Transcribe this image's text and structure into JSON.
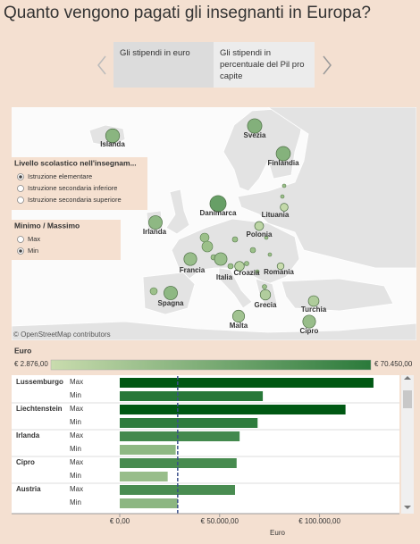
{
  "title": "Quanto vengono pagati gli insegnanti in Europa?",
  "tabs": {
    "items": [
      "Gli stipendi in euro",
      "Gli stipendi in percentuale del Pil pro capite"
    ],
    "selected": 0
  },
  "map": {
    "attribution": "© OpenStreetMap contributors",
    "points": [
      {
        "label": "Islanda",
        "value": 30000
      },
      {
        "label": "Svezia",
        "value": 33000
      },
      {
        "label": "Finlandia",
        "value": 32000
      },
      {
        "label": "Danimarca",
        "value": 45000
      },
      {
        "label": "Lituania",
        "value": 5000
      },
      {
        "label": "Polonia",
        "value": 8000
      },
      {
        "label": "Irlanda",
        "value": 28000
      },
      {
        "label": "Francia",
        "value": 24000
      },
      {
        "label": "Italia",
        "value": 23000
      },
      {
        "label": "Croazia",
        "value": 10000
      },
      {
        "label": "Romania",
        "value": 3000
      },
      {
        "label": "Spagna",
        "value": 28000
      },
      {
        "label": "Grecia",
        "value": 13000
      },
      {
        "label": "Turchia",
        "value": 14000
      },
      {
        "label": "Cipro",
        "value": 24000
      },
      {
        "label": "Malta",
        "value": 20000
      }
    ]
  },
  "filters": [
    {
      "title": "Livello scolastico nell'insegnam...",
      "options": [
        "Istruzione elementare",
        "Istruzione secondaria inferiore",
        "Istruzione secondaria superiore"
      ],
      "selected": 0
    },
    {
      "title": "Minimo / Massimo",
      "options": [
        "Max",
        "Min"
      ],
      "selected": 1
    }
  ],
  "legend": {
    "title": "Euro",
    "min": {
      "value": 2876,
      "label": "€ 2.876,00"
    },
    "max": {
      "value": 70450,
      "label": "€ 70.450,00"
    },
    "colors": [
      "#c9dcae",
      "#2b7a3b"
    ]
  },
  "chart_data": {
    "type": "bar",
    "orientation": "horizontal",
    "categories": [
      "Lussemburgo",
      "Liechtenstein",
      "Irlanda",
      "Cipro",
      "Austria"
    ],
    "series": [
      {
        "name": "Max",
        "values": [
          127000,
          113000,
          60000,
          58500,
          57700
        ]
      },
      {
        "name": "Min",
        "values": [
          71600,
          69000,
          28000,
          24000,
          29000
        ]
      }
    ],
    "reference_line": 29000,
    "xlim": [
      0,
      140000
    ],
    "xticks": [
      {
        "value": 0,
        "label": "€ 0,00"
      },
      {
        "value": 50000,
        "label": "€ 50.000,00"
      },
      {
        "value": 100000,
        "label": "€ 100.000,00"
      }
    ],
    "xlabel": "Euro"
  }
}
